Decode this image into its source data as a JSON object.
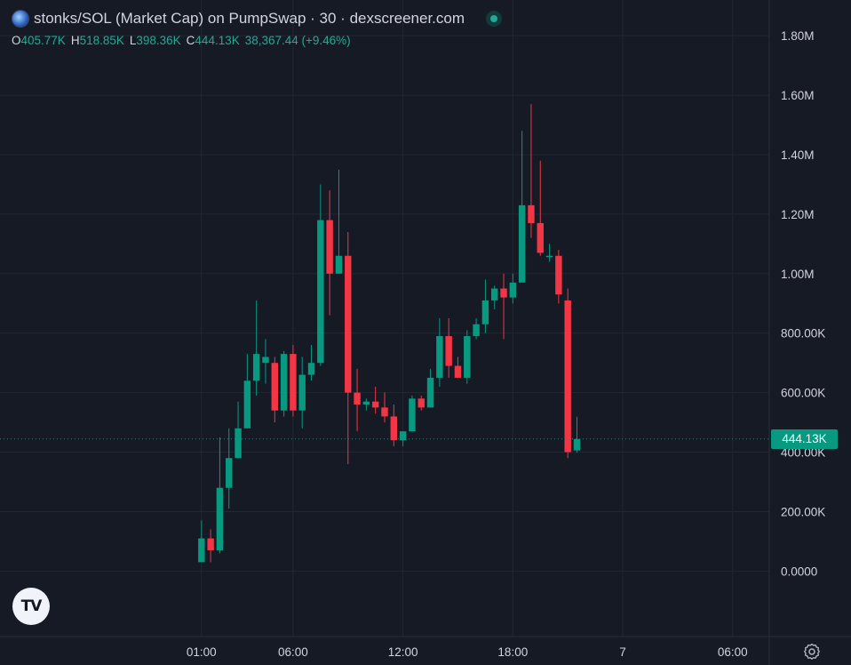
{
  "header": {
    "title": "stonks/SOL (Market Cap) on PumpSwap · 30 · dexscreener.com",
    "ohlc": [
      {
        "key": "O",
        "value": "405.77K"
      },
      {
        "key": "H",
        "value": "518.85K"
      },
      {
        "key": "L",
        "value": "398.36K"
      },
      {
        "key": "C",
        "value": "444.13K"
      },
      {
        "key": "",
        "value": "38,367.44 (+9.46%)"
      }
    ]
  },
  "price_tag": "444.13K",
  "colors": {
    "up": "#089981",
    "down": "#f23645",
    "background": "#161a25",
    "grid": "#232733",
    "text": "#d1d4dc"
  },
  "chart_data": {
    "type": "candlestick",
    "title": "stonks/SOL (Market Cap) on PumpSwap · 30 · dexscreener.com",
    "y_ticks": [
      "1.80M",
      "1.60M",
      "1.40M",
      "1.20M",
      "1.00M",
      "800.00K",
      "600.00K",
      "400.00K",
      "200.00K",
      "0.0000"
    ],
    "y_tick_values": [
      1800000,
      1600000,
      1400000,
      1200000,
      1000000,
      800000,
      600000,
      400000,
      200000,
      0
    ],
    "ylim": [
      -220000,
      1920000
    ],
    "x_ticks": [
      {
        "label": "01:00",
        "index": 0
      },
      {
        "label": "06:00",
        "index": 10
      },
      {
        "label": "12:00",
        "index": 22
      },
      {
        "label": "18:00",
        "index": 34
      },
      {
        "label": "7",
        "index": 46
      },
      {
        "label": "06:00",
        "index": 58
      }
    ],
    "x_index_range": [
      -22,
      62
    ],
    "last_price": 444130,
    "candles": [
      {
        "o": 30000,
        "h": 170000,
        "l": 30000,
        "c": 110000
      },
      {
        "o": 110000,
        "h": 140000,
        "l": 30000,
        "c": 70000
      },
      {
        "o": 70000,
        "h": 450000,
        "l": 60000,
        "c": 280000
      },
      {
        "o": 280000,
        "h": 480000,
        "l": 210000,
        "c": 380000
      },
      {
        "o": 380000,
        "h": 570000,
        "l": 380000,
        "c": 480000
      },
      {
        "o": 480000,
        "h": 730000,
        "l": 480000,
        "c": 640000
      },
      {
        "o": 640000,
        "h": 910000,
        "l": 590000,
        "c": 730000
      },
      {
        "o": 700000,
        "h": 780000,
        "l": 630000,
        "c": 720000
      },
      {
        "o": 700000,
        "h": 720000,
        "l": 500000,
        "c": 540000
      },
      {
        "o": 540000,
        "h": 740000,
        "l": 520000,
        "c": 730000
      },
      {
        "o": 730000,
        "h": 760000,
        "l": 520000,
        "c": 540000
      },
      {
        "o": 540000,
        "h": 720000,
        "l": 480000,
        "c": 660000
      },
      {
        "o": 660000,
        "h": 760000,
        "l": 640000,
        "c": 700000
      },
      {
        "o": 700000,
        "h": 1300000,
        "l": 690000,
        "c": 1180000
      },
      {
        "o": 1180000,
        "h": 1280000,
        "l": 860000,
        "c": 1000000
      },
      {
        "o": 1000000,
        "h": 1350000,
        "l": 1000000,
        "c": 1060000
      },
      {
        "o": 1060000,
        "h": 1140000,
        "l": 360000,
        "c": 600000
      },
      {
        "o": 600000,
        "h": 680000,
        "l": 470000,
        "c": 560000
      },
      {
        "o": 560000,
        "h": 580000,
        "l": 540000,
        "c": 570000
      },
      {
        "o": 570000,
        "h": 620000,
        "l": 530000,
        "c": 550000
      },
      {
        "o": 550000,
        "h": 600000,
        "l": 500000,
        "c": 520000
      },
      {
        "o": 520000,
        "h": 560000,
        "l": 420000,
        "c": 440000
      },
      {
        "o": 440000,
        "h": 470000,
        "l": 420000,
        "c": 470000
      },
      {
        "o": 470000,
        "h": 590000,
        "l": 470000,
        "c": 580000
      },
      {
        "o": 580000,
        "h": 590000,
        "l": 540000,
        "c": 550000
      },
      {
        "o": 550000,
        "h": 680000,
        "l": 550000,
        "c": 650000
      },
      {
        "o": 650000,
        "h": 850000,
        "l": 620000,
        "c": 790000
      },
      {
        "o": 790000,
        "h": 850000,
        "l": 650000,
        "c": 690000
      },
      {
        "o": 690000,
        "h": 720000,
        "l": 650000,
        "c": 650000
      },
      {
        "o": 650000,
        "h": 810000,
        "l": 630000,
        "c": 790000
      },
      {
        "o": 790000,
        "h": 850000,
        "l": 780000,
        "c": 830000
      },
      {
        "o": 830000,
        "h": 980000,
        "l": 800000,
        "c": 910000
      },
      {
        "o": 910000,
        "h": 960000,
        "l": 880000,
        "c": 950000
      },
      {
        "o": 950000,
        "h": 1000000,
        "l": 780000,
        "c": 920000
      },
      {
        "o": 920000,
        "h": 1000000,
        "l": 900000,
        "c": 970000
      },
      {
        "o": 970000,
        "h": 1480000,
        "l": 970000,
        "c": 1230000
      },
      {
        "o": 1230000,
        "h": 1570000,
        "l": 1120000,
        "c": 1170000
      },
      {
        "o": 1170000,
        "h": 1380000,
        "l": 1060000,
        "c": 1070000
      },
      {
        "o": 1060000,
        "h": 1100000,
        "l": 1040000,
        "c": 1060000
      },
      {
        "o": 1060000,
        "h": 1080000,
        "l": 900000,
        "c": 930000
      },
      {
        "o": 910000,
        "h": 950000,
        "l": 380000,
        "c": 400000
      },
      {
        "o": 405770,
        "h": 518850,
        "l": 398360,
        "c": 444130
      }
    ]
  }
}
